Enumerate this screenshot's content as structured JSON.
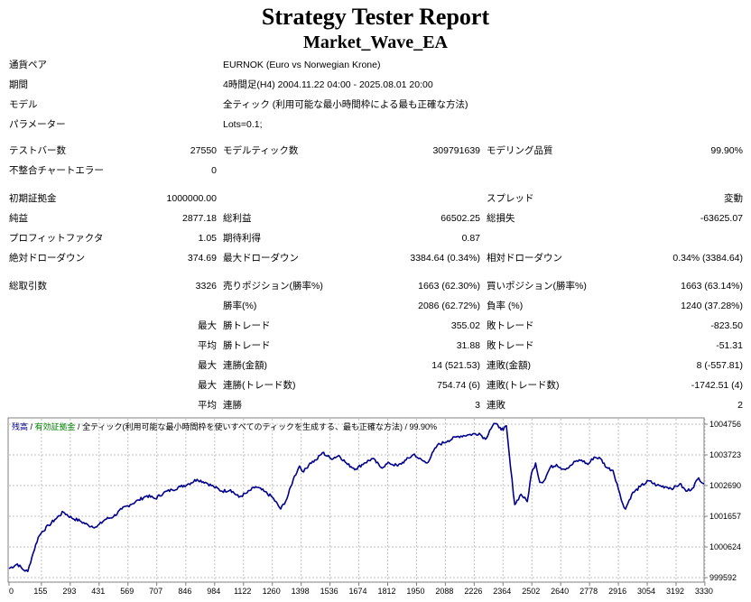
{
  "header": {
    "title": "Strategy Tester Report",
    "ea_name": "Market_Wave_EA"
  },
  "info": [
    {
      "label": "通貨ペア",
      "value": "EURNOK (Euro vs Norwegian Krone)"
    },
    {
      "label": "期間",
      "value": "4時間足(H4) 2004.11.22 04:00 - 2025.08.01 20:00"
    },
    {
      "label": "モデル",
      "value": "全ティック (利用可能な最小時間枠による最も正確な方法)"
    },
    {
      "label": "パラメーター",
      "value": "Lots=0.1;"
    }
  ],
  "stats": {
    "test_bars_label": "テストバー数",
    "test_bars": "27550",
    "model_ticks_label": "モデルティック数",
    "model_ticks": "309791639",
    "model_quality_label": "モデリング品質",
    "model_quality": "99.90%",
    "mismatch_label": "不整合チャートエラー",
    "mismatch": "0",
    "initial_deposit_label": "初期証拠金",
    "initial_deposit": "1000000.00",
    "spread_label": "スプレッド",
    "spread": "変動",
    "net_profit_label": "純益",
    "net_profit": "2877.18",
    "gross_profit_label": "総利益",
    "gross_profit": "66502.25",
    "gross_loss_label": "総損失",
    "gross_loss": "-63625.07",
    "profit_factor_label": "プロフィットファクタ",
    "profit_factor": "1.05",
    "expected_payoff_label": "期待利得",
    "expected_payoff": "0.87",
    "abs_dd_label": "絶対ドローダウン",
    "abs_dd": "374.69",
    "max_dd_label": "最大ドローダウン",
    "max_dd": "3384.64 (0.34%)",
    "rel_dd_label": "相対ドローダウン",
    "rel_dd": "0.34% (3384.64)",
    "total_trades_label": "総取引数",
    "total_trades": "3326",
    "short_label": "売りポジション(勝率%)",
    "short": "1663 (62.30%)",
    "long_label": "買いポジション(勝率%)",
    "long": "1663 (63.14%)",
    "win_rate_label": "勝率(%)",
    "win_rate": "2086 (62.72%)",
    "loss_rate_label": "負率 (%)",
    "loss_rate": "1240 (37.28%)",
    "max_label": "最大",
    "avg_label": "平均",
    "largest_win_label": "勝トレード",
    "largest_win": "355.02",
    "largest_loss_label": "敗トレード",
    "largest_loss": "-823.50",
    "avg_win_label": "勝トレード",
    "avg_win": "31.88",
    "avg_loss_label": "敗トレード",
    "avg_loss": "-51.31",
    "max_consec_win_amt_label": "連勝(金額)",
    "max_consec_win_amt": "14 (521.53)",
    "max_consec_loss_amt_label": "連敗(金額)",
    "max_consec_loss_amt": "8 (-557.81)",
    "max_consec_win_cnt_label": "連勝(トレード数)",
    "max_consec_win_cnt": "754.74 (6)",
    "max_consec_loss_cnt_label": "連敗(トレード数)",
    "max_consec_loss_cnt": "-1742.51 (4)",
    "avg_consec_win_label": "連勝",
    "avg_consec_win": "3",
    "avg_consec_loss_label": "連敗",
    "avg_consec_loss": "2"
  },
  "chart_data": {
    "type": "line",
    "legend": {
      "balance": "残高",
      "sep1": " / ",
      "margin": "有効証拠金",
      "sep2": " / ",
      "model": "全ティック(利用可能な最小時間枠を使いすべてのティックを生成する、最も正確な方法)",
      "sep3": " / ",
      "quality": "99.90%"
    },
    "x_ticks": [
      "0",
      "155",
      "293",
      "431",
      "569",
      "707",
      "846",
      "984",
      "1122",
      "1260",
      "1398",
      "1536",
      "1674",
      "1812",
      "1950",
      "2088",
      "2226",
      "2364",
      "2502",
      "2640",
      "2778",
      "2916",
      "3054",
      "3192",
      "3330"
    ],
    "y_ticks": [
      "1004756",
      "1003723",
      "1002690",
      "1001657",
      "1000624",
      "999592"
    ],
    "xlim": [
      0,
      3326
    ],
    "ylim": [
      999592,
      1004756
    ],
    "grid": true,
    "series": [
      {
        "color": "#00008b",
        "x": [
          0,
          40,
          70,
          90,
          110,
          140,
          160,
          190,
          220,
          260,
          300,
          340,
          380,
          420,
          460,
          500,
          540,
          580,
          620,
          660,
          700,
          740,
          780,
          820,
          860,
          900,
          940,
          980,
          1020,
          1060,
          1100,
          1140,
          1180,
          1220,
          1260,
          1300,
          1330,
          1360,
          1390,
          1410,
          1440,
          1470,
          1500,
          1540,
          1580,
          1620,
          1660,
          1700,
          1740,
          1780,
          1820,
          1860,
          1900,
          1940,
          1960,
          2000,
          2050,
          2100,
          2150,
          2200,
          2250,
          2280,
          2300,
          2320,
          2350,
          2365,
          2380,
          2400,
          2420,
          2450,
          2480,
          2500,
          2520,
          2540,
          2560,
          2590,
          2620,
          2650,
          2680,
          2710,
          2740,
          2770,
          2800,
          2830,
          2860,
          2890,
          2910,
          2930,
          2950,
          2980,
          3020,
          3060,
          3100,
          3140,
          3180,
          3210,
          3240,
          3270,
          3300,
          3326
        ],
        "y": [
          999900,
          1000050,
          999850,
          999800,
          1000300,
          1000950,
          1001150,
          1001350,
          1001550,
          1001800,
          1001600,
          1001500,
          1001350,
          1001300,
          1001550,
          1001650,
          1001900,
          1002050,
          1002200,
          1002350,
          1002250,
          1002450,
          1002550,
          1002650,
          1002750,
          1002900,
          1002800,
          1002650,
          1002500,
          1002550,
          1002300,
          1002450,
          1002650,
          1002500,
          1002300,
          1001900,
          1002250,
          1002900,
          1003350,
          1003150,
          1003450,
          1003550,
          1003800,
          1003600,
          1003700,
          1003400,
          1003250,
          1003450,
          1003600,
          1003300,
          1003450,
          1003350,
          1003550,
          1003750,
          1003600,
          1003450,
          1004050,
          1004200,
          1004350,
          1004400,
          1004450,
          1004250,
          1004550,
          1004780,
          1004650,
          1004550,
          1004700,
          1003300,
          1002050,
          1002400,
          1002150,
          1003100,
          1003450,
          1002800,
          1002850,
          1003300,
          1003400,
          1003250,
          1003300,
          1003500,
          1003550,
          1003400,
          1003650,
          1003600,
          1003300,
          1003200,
          1002750,
          1002200,
          1001900,
          1002400,
          1002650,
          1002850,
          1002700,
          1002650,
          1002600,
          1002750,
          1002500,
          1002600,
          1002950,
          1002750
        ]
      }
    ]
  }
}
